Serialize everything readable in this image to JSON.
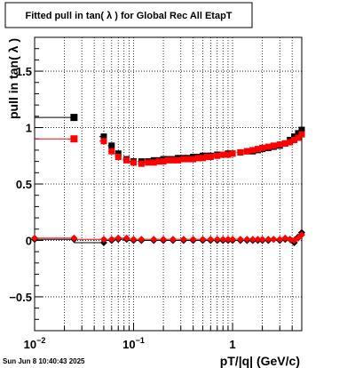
{
  "chart_data": {
    "type": "scatter",
    "title": "Fitted pull in tan( λ ) for Global Rec All EtapT",
    "xlabel": "pT/|q| (GeV/c)",
    "ylabel": "pull in tan( λ )",
    "xscale": "log",
    "xlim": [
      0.01,
      5
    ],
    "ylim": [
      -0.8,
      1.8
    ],
    "grid": true,
    "x_ticks": [
      {
        "value": 0.01,
        "base": "10",
        "exp": "−2"
      },
      {
        "value": 0.1,
        "base": "10",
        "exp": "−1"
      },
      {
        "value": 1,
        "base": "1",
        "exp": ""
      }
    ],
    "y_ticks": [
      {
        "value": -0.5,
        "label": "−0.5"
      },
      {
        "value": 0,
        "label": "0"
      },
      {
        "value": 0.5,
        "label": "0.5"
      },
      {
        "value": 1,
        "label": "1"
      },
      {
        "value": 1.5,
        "label": "1.5"
      }
    ],
    "series": [
      {
        "color": "#000000",
        "marker": "square",
        "x": [
          0.025,
          0.05,
          0.06,
          0.07,
          0.085,
          0.1,
          0.12,
          0.14,
          0.16,
          0.18,
          0.2,
          0.22,
          0.25,
          0.28,
          0.32,
          0.36,
          0.4,
          0.45,
          0.5,
          0.55,
          0.6,
          0.7,
          0.8,
          0.9,
          1.0,
          1.2,
          1.4,
          1.6,
          1.8,
          2.0,
          2.3,
          2.6,
          3.0,
          3.4,
          3.8,
          4.2,
          4.6,
          5.0
        ],
        "y": [
          1.09,
          0.92,
          0.84,
          0.77,
          0.72,
          0.7,
          0.7,
          0.7,
          0.71,
          0.71,
          0.72,
          0.72,
          0.72,
          0.73,
          0.73,
          0.73,
          0.74,
          0.74,
          0.75,
          0.75,
          0.75,
          0.76,
          0.76,
          0.77,
          0.77,
          0.78,
          0.79,
          0.79,
          0.8,
          0.81,
          0.82,
          0.83,
          0.84,
          0.86,
          0.89,
          0.92,
          0.95,
          0.98
        ],
        "x_err": [
          0.015,
          0.005,
          0.005,
          0.005,
          0.007,
          0.01,
          0.01,
          0.01,
          0.01,
          0.01,
          0.01,
          0.01,
          0.015,
          0.015,
          0.02,
          0.02,
          0.02,
          0.025,
          0.025,
          0.025,
          0.03,
          0.05,
          0.05,
          0.05,
          0.05,
          0.1,
          0.1,
          0.1,
          0.1,
          0.1,
          0.15,
          0.15,
          0.2,
          0.2,
          0.2,
          0.2,
          0.2,
          0.2
        ],
        "x_low": [
          0.01,
          0.045,
          0.055,
          0.065,
          0.078,
          0.09,
          0.11,
          0.13,
          0.15,
          0.17,
          0.19,
          0.21,
          0.235,
          0.265,
          0.3,
          0.34,
          0.38,
          0.425,
          0.475,
          0.525,
          0.57,
          0.65,
          0.75,
          0.85,
          0.95,
          1.1,
          1.3,
          1.5,
          1.7,
          1.9,
          2.15,
          2.45,
          2.8,
          3.2,
          3.6,
          4.0,
          4.4,
          4.8
        ],
        "bands": [
          {
            "x": [
              0.01,
              0.025,
              0.05,
              0.06,
              0.07,
              0.085,
              0.1,
              0.12,
              0.16,
              0.2,
              0.25,
              0.32,
              0.4,
              0.5,
              0.6,
              0.7,
              0.8,
              0.9,
              1.0,
              1.2,
              1.4,
              1.6,
              1.8,
              2.0,
              2.3,
              2.6,
              3.0,
              3.4,
              3.8,
              4.2,
              4.6,
              5.0
            ],
            "y": [
              0.01,
              0.01,
              -0.02,
              0.0,
              0.01,
              0.01,
              0.0,
              0.0,
              0.0,
              0.0,
              0.0,
              0.0,
              0.0,
              0.0,
              0.0,
              0.0,
              0.0,
              0.0,
              0.0,
              0.0,
              0.0,
              0.0,
              0.0,
              0.0,
              0.0,
              0.01,
              0.0,
              0.01,
              0.01,
              -0.02,
              0.03,
              0.07
            ]
          }
        ]
      },
      {
        "color": "#ff0000",
        "marker": "square",
        "x": [
          0.025,
          0.05,
          0.06,
          0.07,
          0.085,
          0.1,
          0.12,
          0.14,
          0.16,
          0.18,
          0.2,
          0.22,
          0.25,
          0.28,
          0.32,
          0.36,
          0.4,
          0.45,
          0.5,
          0.55,
          0.6,
          0.7,
          0.8,
          0.9,
          1.0,
          1.2,
          1.4,
          1.6,
          1.8,
          2.0,
          2.3,
          2.6,
          3.0,
          3.4,
          3.8,
          4.2,
          4.6,
          5.0
        ],
        "y": [
          0.9,
          0.88,
          0.79,
          0.74,
          0.71,
          0.69,
          0.68,
          0.69,
          0.69,
          0.7,
          0.7,
          0.71,
          0.71,
          0.71,
          0.72,
          0.72,
          0.72,
          0.73,
          0.73,
          0.74,
          0.74,
          0.75,
          0.76,
          0.76,
          0.77,
          0.78,
          0.79,
          0.8,
          0.81,
          0.82,
          0.83,
          0.84,
          0.85,
          0.86,
          0.87,
          0.89,
          0.91,
          0.94
        ],
        "x_low": [
          0.01,
          0.045,
          0.055,
          0.065,
          0.078,
          0.09,
          0.11,
          0.13,
          0.15,
          0.17,
          0.19,
          0.21,
          0.235,
          0.265,
          0.3,
          0.34,
          0.38,
          0.425,
          0.475,
          0.525,
          0.57,
          0.65,
          0.75,
          0.85,
          0.95,
          1.1,
          1.3,
          1.5,
          1.7,
          1.9,
          2.15,
          2.45,
          2.8,
          3.2,
          3.6,
          4.0,
          4.4,
          4.8
        ],
        "bands": [
          {
            "x": [
              0.01,
              0.025,
              0.05,
              0.06,
              0.07,
              0.085,
              0.1,
              0.12,
              0.16,
              0.2,
              0.25,
              0.32,
              0.4,
              0.5,
              0.6,
              0.7,
              0.8,
              0.9,
              1.0,
              1.2,
              1.4,
              1.6,
              1.8,
              2.0,
              2.3,
              2.6,
              3.0,
              3.4,
              3.8,
              4.2,
              4.6,
              5.0
            ],
            "y": [
              0.02,
              0.02,
              0.01,
              0.01,
              0.02,
              0.02,
              0.01,
              0.01,
              0.01,
              0.01,
              0.01,
              0.01,
              0.01,
              0.01,
              0.01,
              0.01,
              0.01,
              0.01,
              0.01,
              0.01,
              0.01,
              0.01,
              0.01,
              0.01,
              0.01,
              0.01,
              0.01,
              0.02,
              0.01,
              0.0,
              0.02,
              0.05
            ]
          }
        ]
      }
    ]
  },
  "footer": {
    "timestamp": "Sun Jun  8 10:40:43 2025"
  }
}
